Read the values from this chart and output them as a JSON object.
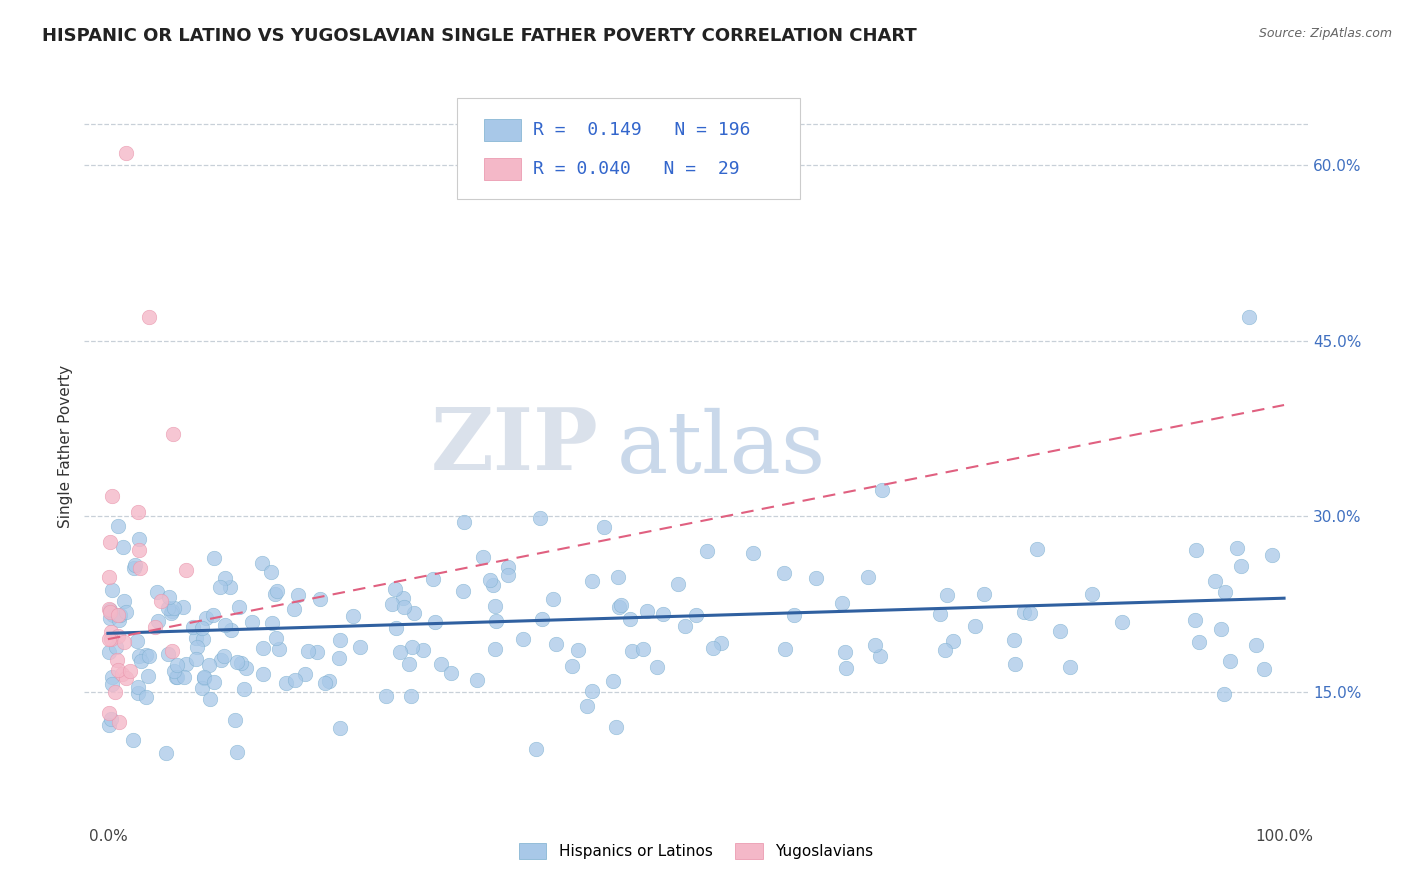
{
  "title": "HISPANIC OR LATINO VS YUGOSLAVIAN SINGLE FATHER POVERTY CORRELATION CHART",
  "source": "Source: ZipAtlas.com",
  "ylabel": "Single Father Poverty",
  "y_ticks": [
    0.15,
    0.3,
    0.45,
    0.6
  ],
  "y_tick_labels": [
    "15.0%",
    "30.0%",
    "45.0%",
    "60.0%"
  ],
  "x_lim": [
    -0.02,
    1.02
  ],
  "y_lim": [
    0.04,
    0.68
  ],
  "y_top_line": 0.635,
  "blue_color": "#a8c8e8",
  "pink_color": "#f4b8c8",
  "blue_edge_color": "#7aaece",
  "pink_edge_color": "#e890a8",
  "blue_line_color": "#3060a0",
  "pink_line_color": "#e06080",
  "watermark_zip": "ZIP",
  "watermark_atlas": "atlas",
  "legend_R_blue": "0.149",
  "legend_N_blue": "196",
  "legend_R_pink": "0.040",
  "legend_N_pink": "29",
  "legend_label_blue": "Hispanics or Latinos",
  "legend_label_pink": "Yugoslavians",
  "grid_color": "#c8d0d8",
  "background_color": "#ffffff",
  "title_fontsize": 13,
  "axis_label_fontsize": 11,
  "tick_fontsize": 11,
  "legend_fontsize": 13
}
